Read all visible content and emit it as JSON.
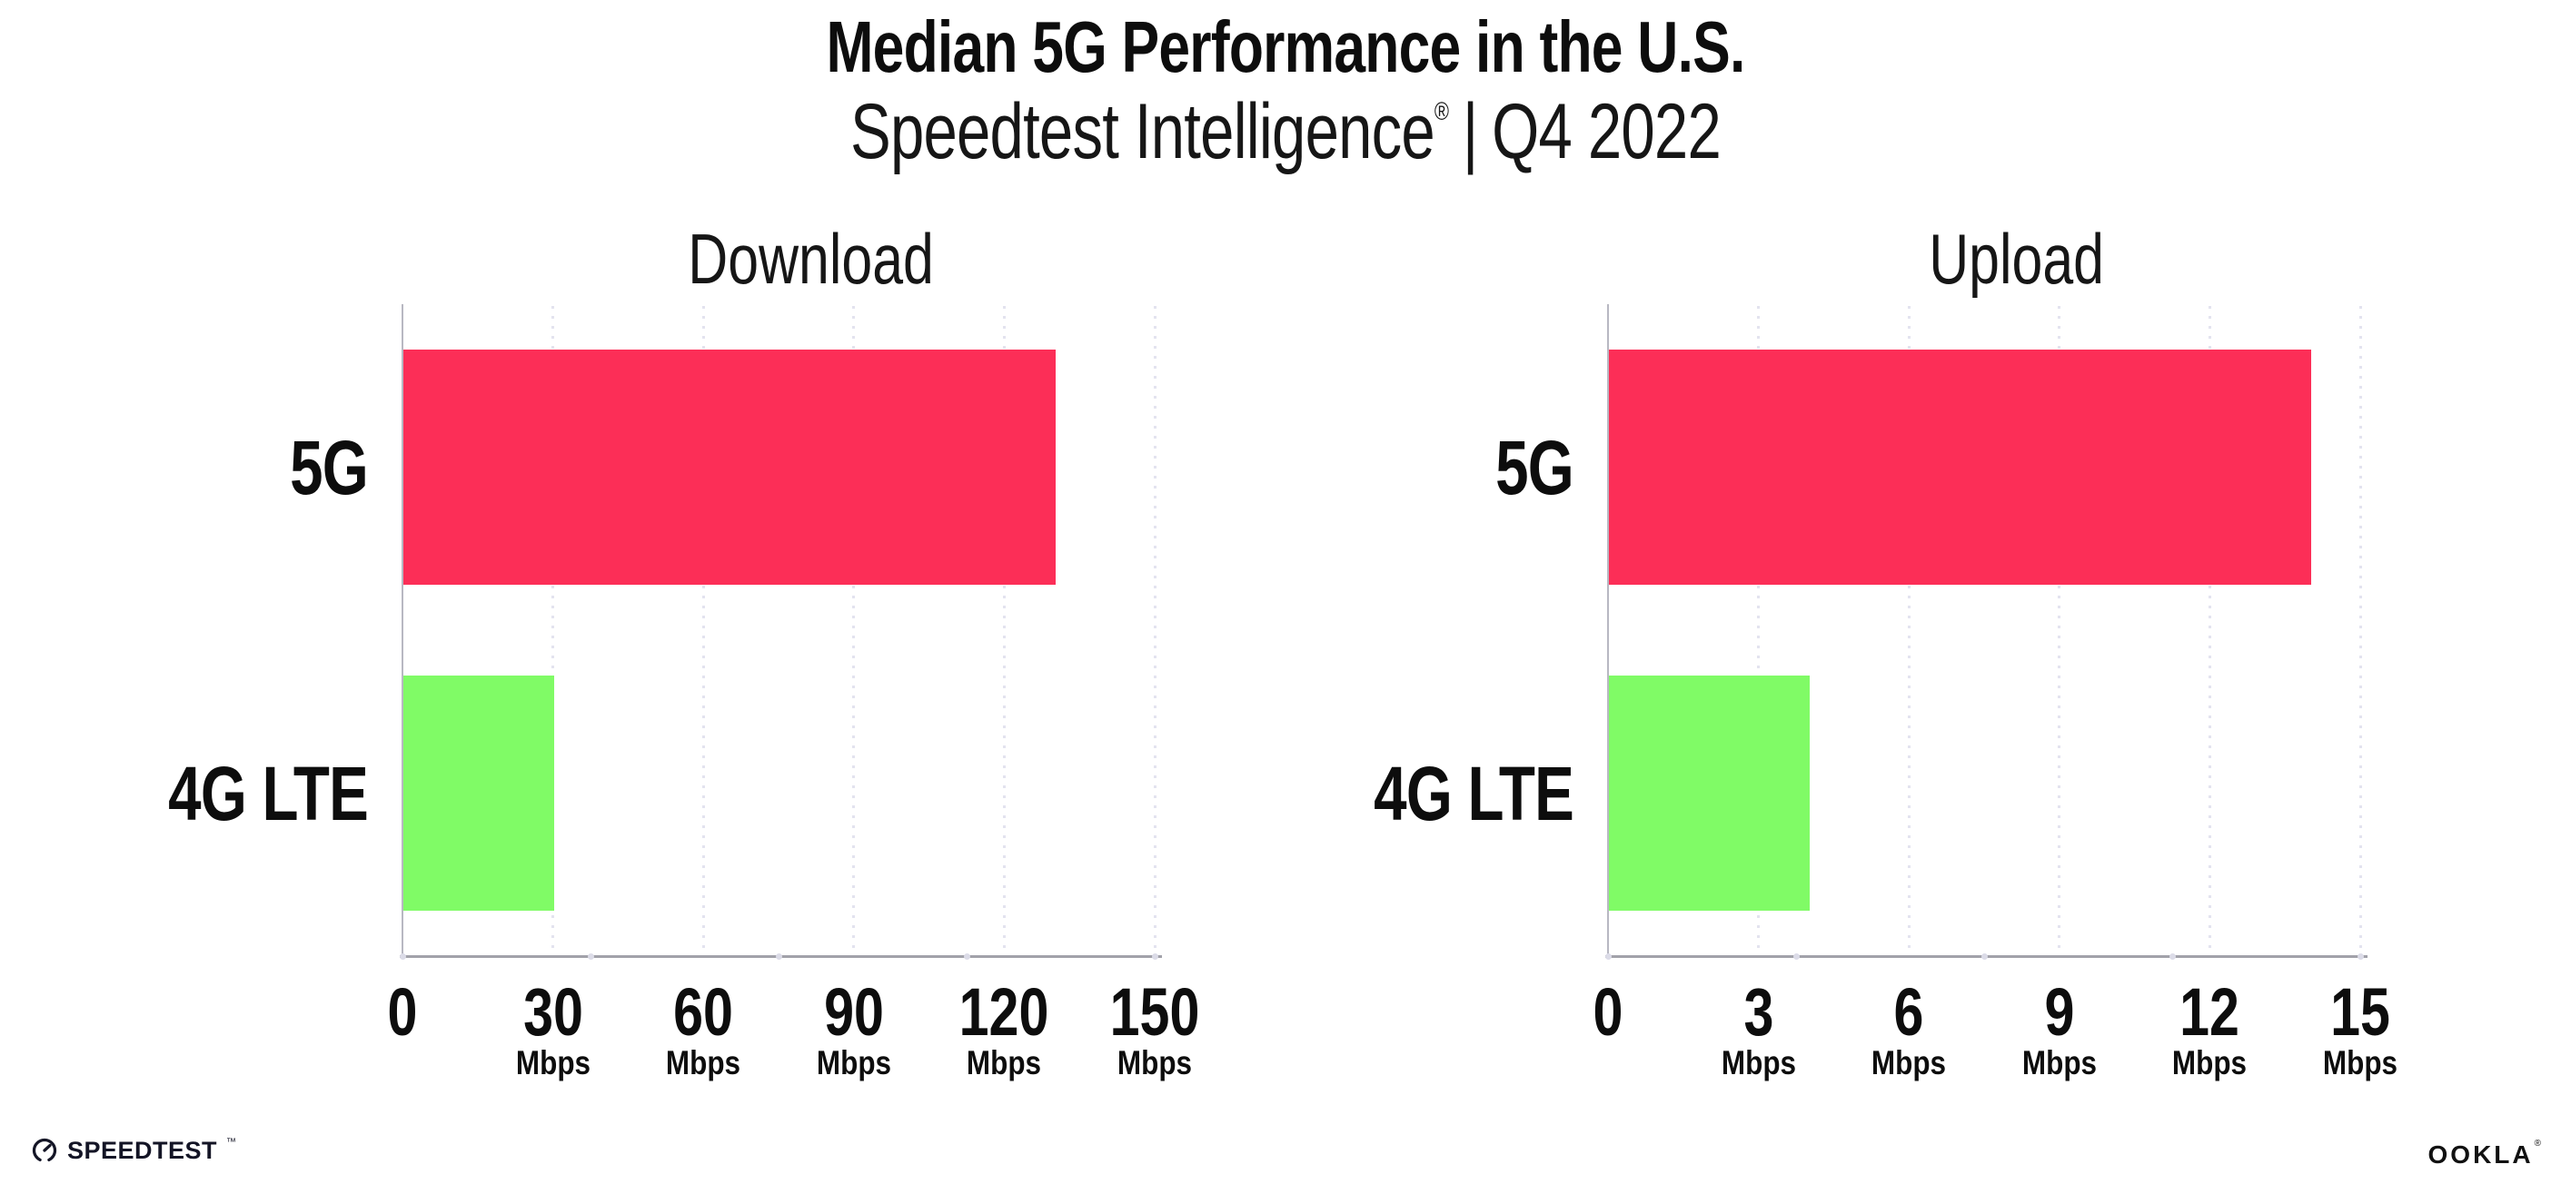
{
  "header": {
    "title": "Median 5G Performance in the U.S.",
    "subtitle_brand": "Speedtest Intelligence",
    "subtitle_reg": "®",
    "subtitle_sep": "|",
    "subtitle_period": "Q4 2022"
  },
  "chart_data": [
    {
      "type": "bar",
      "orientation": "horizontal",
      "title": "Download",
      "categories": [
        "5G",
        "4G LTE"
      ],
      "values": [
        130,
        30
      ],
      "tick_unit": "Mbps",
      "xlim": [
        0,
        150
      ],
      "xticks": [
        0,
        30,
        60,
        90,
        120,
        150
      ],
      "bar_colors": [
        "#fc2e57",
        "#80fb66"
      ],
      "grid": true,
      "legend": "none"
    },
    {
      "type": "bar",
      "orientation": "horizontal",
      "title": "Upload",
      "categories": [
        "5G",
        "4G LTE"
      ],
      "values": [
        14,
        4
      ],
      "tick_unit": "Mbps",
      "xlim": [
        0,
        15
      ],
      "xticks": [
        0,
        3,
        6,
        9,
        12,
        15
      ],
      "bar_colors": [
        "#fc2e57",
        "#80fb66"
      ],
      "grid": true,
      "legend": "none"
    }
  ],
  "colors": {
    "bar_5g": "#fc2e57",
    "bar_4g_lte": "#80fb66",
    "gridline": "#e3e3ef",
    "axis": "#a2a2aa",
    "text": "#0d0d0d"
  },
  "footer": {
    "speedtest_label": "SPEEDTEST",
    "speedtest_tm": "™",
    "speedometer_icon": "speedometer-gauge",
    "ookla_label": "OOKLA",
    "ookla_reg": "®"
  }
}
